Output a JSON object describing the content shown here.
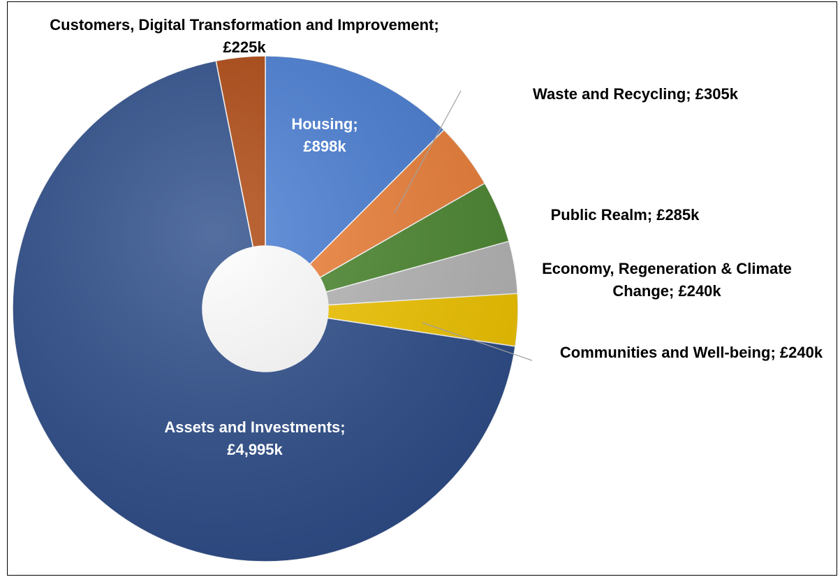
{
  "chart_data": {
    "type": "donut",
    "categories": [
      "Housing",
      "Waste and Recycling",
      "Public Realm",
      "Economy, Regeneration & Climate Change",
      "Communities and Well-being",
      "Assets and Investments",
      "Customers, Digital Transformation and Improvement"
    ],
    "values": [
      898,
      305,
      285,
      240,
      240,
      4995,
      225
    ],
    "value_labels": [
      "£898k",
      "£305k",
      "£285k",
      "£240k",
      "£240k",
      "£4,995k",
      "£225k"
    ],
    "label_separator": "; ",
    "colors": [
      "#4a7fd6",
      "#f0823a",
      "#4e8a32",
      "#b9b9b9",
      "#f5c800",
      "#2f4f8c",
      "#b04810"
    ],
    "label_colors": [
      "#ffffff",
      "#000000",
      "#000000",
      "#000000",
      "#000000",
      "#ffffff",
      "#000000"
    ]
  }
}
